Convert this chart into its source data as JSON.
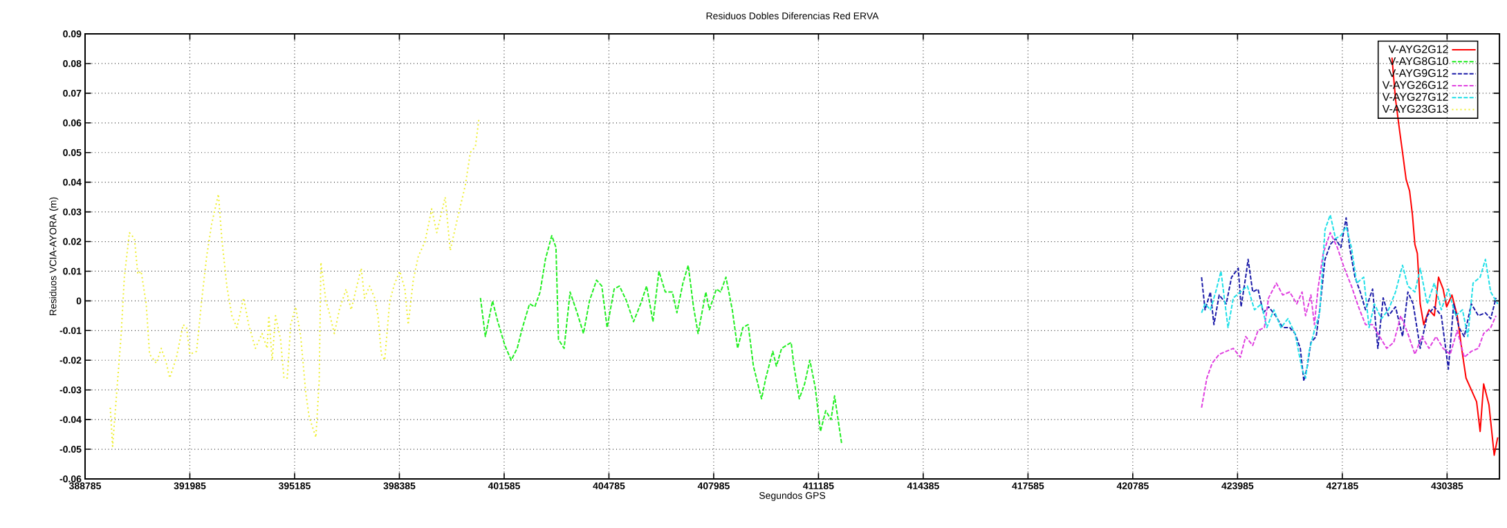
{
  "chart_data": {
    "type": "line",
    "title": "Residuos Dobles Diferencias Red ERVA",
    "xlabel": "Segundos GPS",
    "ylabel": "Residuos VCIA-AYORA (m)",
    "xlim": [
      388785,
      431985
    ],
    "ylim": [
      -0.06,
      0.09
    ],
    "xticks": [
      388785,
      391985,
      395185,
      398385,
      401585,
      404785,
      407985,
      411185,
      414385,
      417585,
      420785,
      423985,
      427185,
      430385
    ],
    "yticks": [
      -0.06,
      -0.05,
      -0.04,
      -0.03,
      -0.02,
      -0.01,
      0,
      0.01,
      0.02,
      0.03,
      0.04,
      0.05,
      0.06,
      0.07,
      0.08,
      0.09
    ],
    "grid": true,
    "legend": "top right",
    "series": [
      {
        "name": "V-AYG2G12",
        "color": "#ff0000",
        "line_style": "solid",
        "x": [
          428702,
          428810,
          428939,
          429025,
          429133,
          429241,
          429327,
          429402,
          429477,
          429564,
          429672,
          429833,
          429995,
          430124,
          430264,
          430371,
          430533,
          430695,
          430856,
          430964,
          431125,
          431287,
          431395,
          431502,
          431664,
          431825,
          431932
        ],
        "values": [
          0.082,
          0.068,
          0.057,
          0.05,
          0.041,
          0.037,
          0.029,
          0.019,
          0.016,
          -0.001,
          -0.008,
          -0.003,
          -0.005,
          0.008,
          0.004,
          -0.002,
          0.002,
          -0.005,
          -0.018,
          -0.026,
          -0.03,
          -0.034,
          -0.044,
          -0.028,
          -0.035,
          -0.052,
          -0.046
        ]
      },
      {
        "name": "V-AYG8G10",
        "color": "#22ee22",
        "line_style": "dashed",
        "x": [
          400861,
          401011,
          401230,
          401391,
          401607,
          401800,
          401983,
          402145,
          402360,
          402522,
          402683,
          402845,
          403039,
          403168,
          403244,
          403416,
          403599,
          403814,
          404008,
          404191,
          404407,
          404568,
          404730,
          404945,
          405107,
          405322,
          405537,
          405753,
          405936,
          406130,
          406313,
          406507,
          406722,
          406862,
          407045,
          407207,
          407368,
          407508,
          407745,
          407853,
          408068,
          408197,
          408359,
          408553,
          408715,
          408876,
          409038,
          409199,
          409447,
          409576,
          409791,
          409899,
          410060,
          410351,
          410437,
          410599,
          410761,
          410922,
          411084,
          411246,
          411407,
          411569,
          411677,
          411784,
          411892
        ],
        "values": [
          0.001,
          -0.012,
          0.0,
          -0.007,
          -0.015,
          -0.02,
          -0.016,
          -0.009,
          -0.001,
          -0.002,
          0.003,
          0.014,
          0.022,
          0.018,
          -0.013,
          -0.016,
          0.003,
          -0.004,
          -0.011,
          0.0,
          0.007,
          0.005,
          -0.009,
          0.004,
          0.005,
          0.0,
          -0.007,
          -0.001,
          0.005,
          -0.007,
          0.01,
          0.003,
          0.003,
          -0.004,
          0.006,
          0.012,
          -0.002,
          -0.011,
          0.003,
          -0.003,
          0.004,
          0.003,
          0.008,
          -0.003,
          -0.016,
          -0.009,
          -0.008,
          -0.022,
          -0.033,
          -0.026,
          -0.017,
          -0.022,
          -0.016,
          -0.014,
          -0.022,
          -0.033,
          -0.028,
          -0.02,
          -0.029,
          -0.044,
          -0.037,
          -0.04,
          -0.032,
          -0.04,
          -0.048
        ]
      },
      {
        "name": "V-AYG9G12",
        "color": "#1a1aa8",
        "line_style": "dashed",
        "x": [
          422886,
          422994,
          423156,
          423263,
          423425,
          423640,
          423802,
          424007,
          424093,
          424233,
          424308,
          424448,
          424610,
          424771,
          424933,
          425148,
          425364,
          425579,
          425741,
          425902,
          426010,
          426117,
          426225,
          426387,
          426494,
          426656,
          426817,
          426979,
          427140,
          427302,
          427410,
          427571,
          427733,
          427894,
          428110,
          428271,
          428433,
          428594,
          428810,
          429025,
          429187,
          429348,
          429564,
          429779,
          429995,
          430210,
          430425,
          430587,
          430748,
          430910,
          431125,
          431341,
          431556,
          431717,
          431879
        ],
        "values": [
          0.008,
          -0.003,
          0.003,
          -0.008,
          0.002,
          -0.001,
          0.008,
          0.011,
          -0.002,
          0.008,
          0.014,
          0.003,
          0.004,
          -0.004,
          -0.002,
          -0.005,
          -0.009,
          -0.009,
          -0.011,
          -0.016,
          -0.027,
          -0.022,
          -0.014,
          -0.012,
          -0.003,
          0.014,
          0.019,
          0.021,
          0.018,
          0.028,
          0.018,
          0.008,
          0.003,
          -0.003,
          0.004,
          -0.016,
          0.001,
          -0.005,
          -0.002,
          -0.012,
          0.003,
          -0.001,
          -0.016,
          -0.005,
          -0.002,
          -0.005,
          -0.023,
          -0.001,
          -0.009,
          -0.012,
          -0.001,
          -0.005,
          -0.004,
          -0.006,
          0.001
        ]
      },
      {
        "name": "V-AYG26G12",
        "color": "#e040e0",
        "line_style": "dashed",
        "x": [
          422886,
          423048,
          423210,
          423425,
          423640,
          423856,
          424071,
          424233,
          424448,
          424610,
          424804,
          424933,
          425170,
          425364,
          425579,
          425794,
          425956,
          426064,
          426225,
          426333,
          426441,
          426602,
          426817,
          427033,
          427248,
          427464,
          427679,
          427894,
          428110,
          428325,
          428541,
          428756,
          428971,
          429187,
          429402,
          429618,
          429833,
          430048,
          430264,
          430479,
          430695,
          430910,
          431125,
          431341,
          431502,
          431717,
          431879
        ],
        "values": [
          -0.036,
          -0.026,
          -0.021,
          -0.018,
          -0.017,
          -0.016,
          -0.019,
          -0.012,
          -0.015,
          -0.01,
          -0.009,
          0.001,
          0.006,
          0.002,
          0.003,
          -0.001,
          0.003,
          -0.005,
          0.002,
          -0.008,
          0.004,
          0.016,
          0.023,
          0.018,
          0.011,
          0.005,
          -0.002,
          -0.008,
          -0.008,
          -0.012,
          -0.016,
          -0.014,
          -0.005,
          -0.011,
          -0.018,
          -0.012,
          -0.016,
          -0.012,
          -0.016,
          -0.018,
          -0.01,
          -0.019,
          -0.017,
          -0.016,
          -0.011,
          -0.009,
          -0.005
        ]
      },
      {
        "name": "V-AYG27G12",
        "color": "#20e0e8",
        "line_style": "dashed",
        "x": [
          422886,
          422994,
          423156,
          423318,
          423479,
          423694,
          423856,
          424071,
          424287,
          424502,
          424717,
          424879,
          425094,
          425310,
          425525,
          425741,
          425956,
          426064,
          426171,
          426333,
          426494,
          426656,
          426817,
          426979,
          427140,
          427302,
          427464,
          427625,
          427840,
          428002,
          428164,
          428379,
          428594,
          428810,
          429025,
          429187,
          429402,
          429564,
          429779,
          429995,
          430210,
          430425,
          430641,
          430856,
          431018,
          431179,
          431395,
          431556,
          431717,
          431932
        ],
        "values": [
          -0.004,
          -0.001,
          -0.003,
          0.003,
          0.01,
          -0.009,
          0.001,
          0.003,
          0.005,
          -0.003,
          -0.001,
          -0.009,
          -0.003,
          -0.009,
          -0.006,
          -0.011,
          -0.023,
          -0.026,
          -0.017,
          -0.01,
          -0.004,
          0.024,
          0.029,
          0.021,
          0.022,
          0.025,
          0.018,
          0.006,
          0.008,
          -0.009,
          -0.001,
          -0.006,
          -0.003,
          0.003,
          0.012,
          0.005,
          0.003,
          0.011,
          -0.001,
          0.006,
          -0.003,
          0.004,
          -0.005,
          -0.003,
          -0.012,
          0.006,
          0.008,
          0.014,
          0.003,
          -0.001
        ]
      },
      {
        "name": "V-AYG23G13",
        "color": "#eeee30",
        "line_style": "dotted",
        "x": [
          389554,
          389626,
          389729,
          389883,
          389985,
          390139,
          390293,
          390396,
          390498,
          390652,
          390755,
          390960,
          391114,
          391268,
          391371,
          391576,
          391781,
          391884,
          391986,
          392191,
          392345,
          392499,
          392653,
          392858,
          392961,
          393115,
          393269,
          393422,
          393628,
          393782,
          393987,
          394192,
          394346,
          394397,
          394500,
          394602,
          394756,
          394859,
          394962,
          395064,
          395218,
          395372,
          395526,
          395628,
          395834,
          395936,
          395988,
          396141,
          396244,
          396398,
          396552,
          396757,
          396911,
          397219,
          397321,
          397475,
          397629,
          397732,
          397834,
          397937,
          398091,
          398245,
          398399,
          398553,
          398655,
          398809,
          398963,
          399168,
          399373,
          399527,
          399784,
          399938,
          400143,
          400399,
          400553,
          400707,
          400810
        ],
        "values": [
          -0.036,
          -0.049,
          -0.034,
          -0.012,
          0.008,
          0.023,
          0.021,
          0.009,
          0.01,
          -0.001,
          -0.018,
          -0.021,
          -0.016,
          -0.021,
          -0.026,
          -0.019,
          -0.008,
          -0.009,
          -0.018,
          -0.017,
          0.0,
          0.015,
          0.026,
          0.036,
          0.021,
          0.005,
          -0.005,
          -0.009,
          0.001,
          -0.008,
          -0.016,
          -0.011,
          -0.016,
          -0.005,
          -0.02,
          -0.005,
          -0.013,
          -0.026,
          -0.026,
          -0.008,
          -0.002,
          -0.012,
          -0.031,
          -0.039,
          -0.046,
          -0.027,
          0.013,
          0.0,
          -0.004,
          -0.011,
          -0.003,
          0.004,
          -0.003,
          0.011,
          0.001,
          0.005,
          0.001,
          -0.005,
          -0.018,
          -0.02,
          0.0,
          0.006,
          0.01,
          0.004,
          -0.008,
          0.007,
          0.015,
          0.02,
          0.031,
          0.023,
          0.035,
          0.017,
          0.027,
          0.039,
          0.05,
          0.052,
          0.061
        ]
      }
    ]
  }
}
